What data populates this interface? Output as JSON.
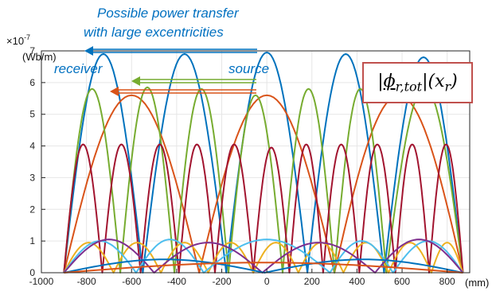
{
  "chart_data": {
    "type": "line",
    "title": "",
    "xlabel": "(mm)",
    "ylabel": "(Wb/m)",
    "y_exponent": "×10^{-7}",
    "xlim": [
      -1000,
      900
    ],
    "ylim": [
      0,
      7
    ],
    "x_ticks": [
      -1000,
      -800,
      -600,
      -400,
      -200,
      0,
      200,
      400,
      600,
      800
    ],
    "y_ticks": [
      0,
      1,
      2,
      3,
      4,
      5,
      6,
      7
    ],
    "grid": true,
    "x_tick_labels": [
      "-1000",
      "-800",
      "-600",
      "-400",
      "-200",
      "0",
      "200",
      "400",
      "600",
      "800"
    ],
    "y_tick_labels": [
      "0",
      "1",
      "2",
      "3",
      "4",
      "5",
      "6",
      "7"
    ],
    "series": [
      {
        "color": "#0072BD",
        "form": "arches",
        "zeros": [
          -900,
          -550,
          -180,
          180,
          520,
          870
        ],
        "peaks": [
          6.9,
          6.9,
          6.95,
          6.9,
          6.8
        ],
        "x": [
          -900,
          -725,
          -550,
          -365,
          -180,
          0,
          180,
          350,
          520,
          695,
          870
        ],
        "y": [
          0,
          6.9,
          0,
          6.9,
          0,
          6.95,
          0,
          6.9,
          0,
          6.8,
          0
        ]
      },
      {
        "color": "#D95319",
        "form": "arches",
        "zeros": [
          -900,
          -300,
          300,
          870
        ],
        "peaks": [
          5.6,
          5.6,
          5.6
        ],
        "x": [
          -900,
          -600,
          -300,
          0,
          300,
          585,
          870
        ],
        "y": [
          0,
          5.6,
          0,
          5.6,
          0,
          5.6,
          0
        ]
      },
      {
        "color": "#77AC30",
        "form": "arches",
        "zeros": [
          -900,
          -650,
          -410,
          -170,
          70,
          300,
          530,
          870
        ],
        "peaks": [
          5.8,
          5.85,
          5.8,
          5.6,
          5.8,
          5.8,
          5.85
        ],
        "x": [
          -900,
          -775,
          -650,
          -530,
          -410,
          -290,
          -170,
          -50,
          70,
          185,
          300,
          415,
          530,
          700,
          870
        ],
        "y": [
          0,
          5.8,
          0,
          5.85,
          0,
          5.8,
          0,
          5.6,
          0,
          5.8,
          0,
          5.8,
          0,
          5.85,
          0
        ]
      },
      {
        "color": "#A2142F",
        "form": "arches",
        "zeros": [
          -900,
          -730,
          -560,
          -390,
          -230,
          -60,
          100,
          250,
          410,
          570,
          720,
          870
        ],
        "peaks": [
          4.05,
          4.05,
          4.05,
          4.05,
          4.05,
          3.95,
          4.05,
          4.05,
          4.05,
          4.05,
          4.05
        ],
        "x": [
          -900,
          -815,
          -730,
          -645,
          -560,
          -475,
          -390,
          -310,
          -230,
          -145,
          -60,
          20,
          100,
          175,
          250,
          330,
          410,
          490,
          570,
          645,
          720,
          795,
          870
        ],
        "y": [
          0,
          4.05,
          0,
          4.05,
          0,
          4.05,
          0,
          4.05,
          0,
          4.05,
          0,
          3.95,
          0,
          4.05,
          0,
          4.05,
          0,
          4.05,
          0,
          4.05,
          0,
          4.05,
          0
        ]
      },
      {
        "color": "#EDB120",
        "form": "arches",
        "zeros": [
          -900,
          -680,
          -470,
          -260,
          -60,
          140,
          340,
          540,
          730,
          870
        ],
        "peaks": [
          0.95,
          0.95,
          0.95,
          0.95,
          0.95,
          0.95,
          0.95,
          0.95,
          0.95
        ],
        "x": [
          -900,
          -790,
          -680,
          -575,
          -470,
          -365,
          -260,
          -160,
          -60,
          40,
          140,
          240,
          340,
          440,
          540,
          635,
          730,
          800,
          870
        ],
        "y": [
          0,
          0.95,
          0,
          0.95,
          0,
          0.95,
          0,
          0.95,
          0,
          0.95,
          0,
          0.95,
          0,
          0.95,
          0,
          0.95,
          0,
          0.95,
          0
        ]
      },
      {
        "color": "#4DBEEE",
        "form": "arches",
        "zeros": [
          -900,
          -580,
          -280,
          280,
          560,
          870
        ],
        "peaks": [
          1.0,
          1.05,
          1.05,
          1.0,
          1.0
        ],
        "x": [
          -900,
          -740,
          -580,
          -430,
          -280,
          0,
          280,
          420,
          560,
          715,
          870
        ],
        "y": [
          0,
          1.0,
          0,
          1.05,
          0,
          1.05,
          0,
          1.0,
          0,
          1.0,
          0
        ]
      },
      {
        "color": "#7E2F8E",
        "form": "arches",
        "zeros": [
          -900,
          -500,
          -20,
          480,
          870
        ],
        "peaks": [
          1.05,
          0.95,
          0.95,
          1.05
        ],
        "x": [
          -900,
          -700,
          -500,
          -260,
          -20,
          230,
          480,
          675,
          870
        ],
        "y": [
          0,
          1.05,
          0,
          0.95,
          0,
          0.95,
          0,
          1.05,
          0
        ]
      },
      {
        "color": "#0072BD",
        "form": "arches",
        "zeros": [
          -900,
          -10,
          870
        ],
        "peaks": [
          0.42,
          0.42
        ],
        "x": [
          -900,
          -455,
          -10,
          430,
          870
        ],
        "y": [
          0,
          0.42,
          0,
          0.42,
          0
        ]
      },
      {
        "color": "#D95319",
        "form": "arches",
        "zeros": [
          -900,
          870
        ],
        "peaks": [
          0.32
        ],
        "x": [
          -900,
          -15,
          870
        ],
        "y": [
          0,
          0.32,
          0
        ]
      }
    ]
  },
  "annotations": {
    "title_line1": "Possible power transfer",
    "title_line2": "with large excentricities",
    "receiver_label": "receiver",
    "source_label": "source",
    "formula": "|ϕ_{r,tot}|(x_r)"
  },
  "colors": {
    "annotation_text": "#0070C0",
    "formula_border": "#C0504D",
    "arrow_blue": "#0072BD",
    "arrow_orange": "#D95319",
    "arrow_green": "#77AC30",
    "grid": "#E6E6E6",
    "axis": "#262626"
  }
}
